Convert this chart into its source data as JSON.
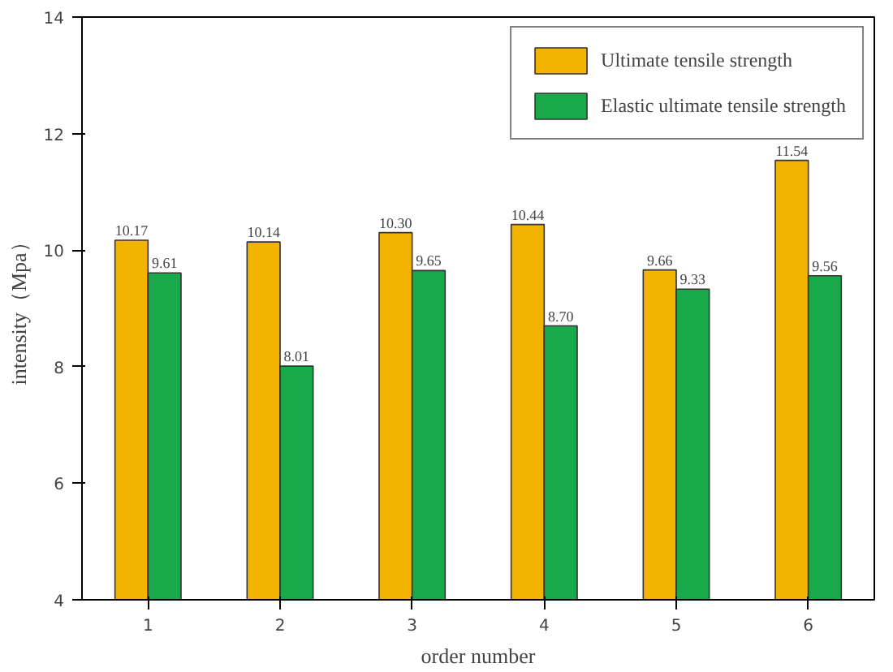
{
  "chart_data": {
    "type": "bar",
    "xlabel": "order number",
    "ylabel": "intensity（Mpa）",
    "categories": [
      "1",
      "2",
      "3",
      "4",
      "5",
      "6"
    ],
    "series": [
      {
        "name": "Ultimate tensile strength",
        "color": "#f2b400",
        "values": [
          10.17,
          10.14,
          10.3,
          10.44,
          9.66,
          11.54
        ],
        "value_labels": [
          "10.17",
          "10.14",
          "10.30",
          "10.44",
          "9.66",
          "11.54"
        ]
      },
      {
        "name": "Elastic ultimate tensile strength",
        "color": "#1aa94a",
        "values": [
          9.61,
          8.01,
          9.65,
          8.7,
          9.33,
          9.56
        ],
        "value_labels": [
          "9.61",
          "8.01",
          "9.65",
          "8.70",
          "9.33",
          "9.56"
        ]
      }
    ],
    "ylim": [
      4,
      14
    ],
    "yticks": [
      4,
      6,
      8,
      10,
      12,
      14
    ],
    "grid": false,
    "legend": "top right"
  }
}
